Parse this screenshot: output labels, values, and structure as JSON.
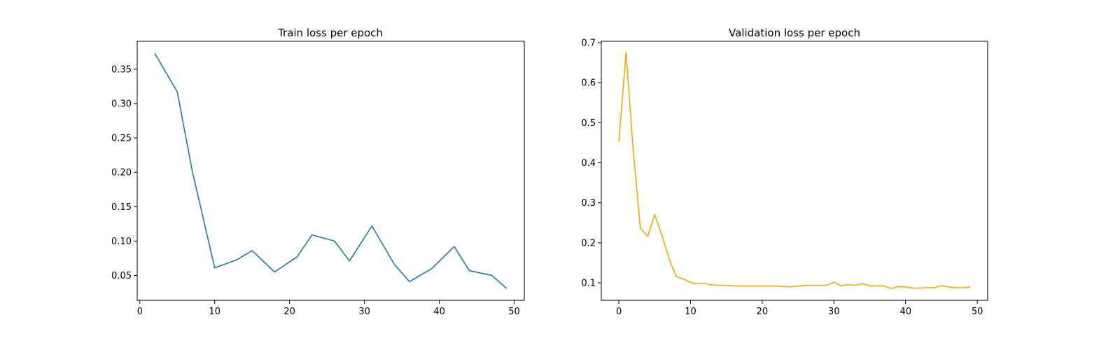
{
  "chart_data": [
    {
      "type": "line",
      "title": "Train loss per epoch",
      "xlabel": "",
      "ylabel": "",
      "xlim": [
        -0.35,
        51.35
      ],
      "ylim": [
        0.0138,
        0.3906
      ],
      "xticks": [
        0,
        10,
        20,
        30,
        40,
        50
      ],
      "yticks": [
        0.05,
        0.1,
        0.15,
        0.2,
        0.25,
        0.3,
        0.35
      ],
      "ytick_labels": [
        "0.05",
        "0.10",
        "0.15",
        "0.20",
        "0.25",
        "0.30",
        "0.35"
      ],
      "grid": false,
      "series": [
        {
          "color": "#1f77b4",
          "x": [
            2,
            5,
            7,
            10,
            13,
            15,
            18,
            21,
            23,
            26,
            28,
            31,
            34,
            36,
            39,
            42,
            44,
            47,
            49
          ],
          "y": [
            0.373,
            0.317,
            0.202,
            0.061,
            0.073,
            0.086,
            0.055,
            0.077,
            0.109,
            0.1,
            0.071,
            0.122,
            0.066,
            0.041,
            0.06,
            0.092,
            0.057,
            0.05,
            0.031
          ]
        }
      ]
    },
    {
      "type": "line",
      "title": "Validation loss per epoch",
      "xlabel": "",
      "ylabel": "",
      "xlim": [
        -2.45,
        51.45
      ],
      "ylim": [
        0.0565,
        0.7035
      ],
      "xticks": [
        0,
        10,
        20,
        30,
        40,
        50
      ],
      "yticks": [
        0.1,
        0.2,
        0.3,
        0.4,
        0.5,
        0.6,
        0.7
      ],
      "ytick_labels": [
        "0.1",
        "0.2",
        "0.3",
        "0.4",
        "0.5",
        "0.6",
        "0.7"
      ],
      "grid": false,
      "series": [
        {
          "color": "#ffa500",
          "x": [
            0,
            1,
            2,
            3,
            4,
            5,
            6,
            7,
            8,
            9,
            10,
            11,
            12,
            13,
            14,
            15,
            16,
            17,
            18,
            19,
            20,
            21,
            22,
            23,
            24,
            25,
            26,
            27,
            28,
            29,
            30,
            31,
            32,
            33,
            34,
            35,
            36,
            37,
            38,
            39,
            40,
            41,
            42,
            43,
            44,
            45,
            46,
            47,
            48,
            49
          ],
          "y": [
            0.453,
            0.676,
            0.43,
            0.237,
            0.216,
            0.271,
            0.219,
            0.16,
            0.116,
            0.11,
            0.101,
            0.098,
            0.098,
            0.095,
            0.094,
            0.094,
            0.093,
            0.092,
            0.092,
            0.092,
            0.092,
            0.092,
            0.092,
            0.091,
            0.09,
            0.092,
            0.094,
            0.094,
            0.094,
            0.094,
            0.102,
            0.093,
            0.096,
            0.094,
            0.098,
            0.093,
            0.093,
            0.092,
            0.086,
            0.091,
            0.09,
            0.087,
            0.087,
            0.088,
            0.088,
            0.093,
            0.09,
            0.088,
            0.088,
            0.09
          ]
        }
      ]
    }
  ]
}
